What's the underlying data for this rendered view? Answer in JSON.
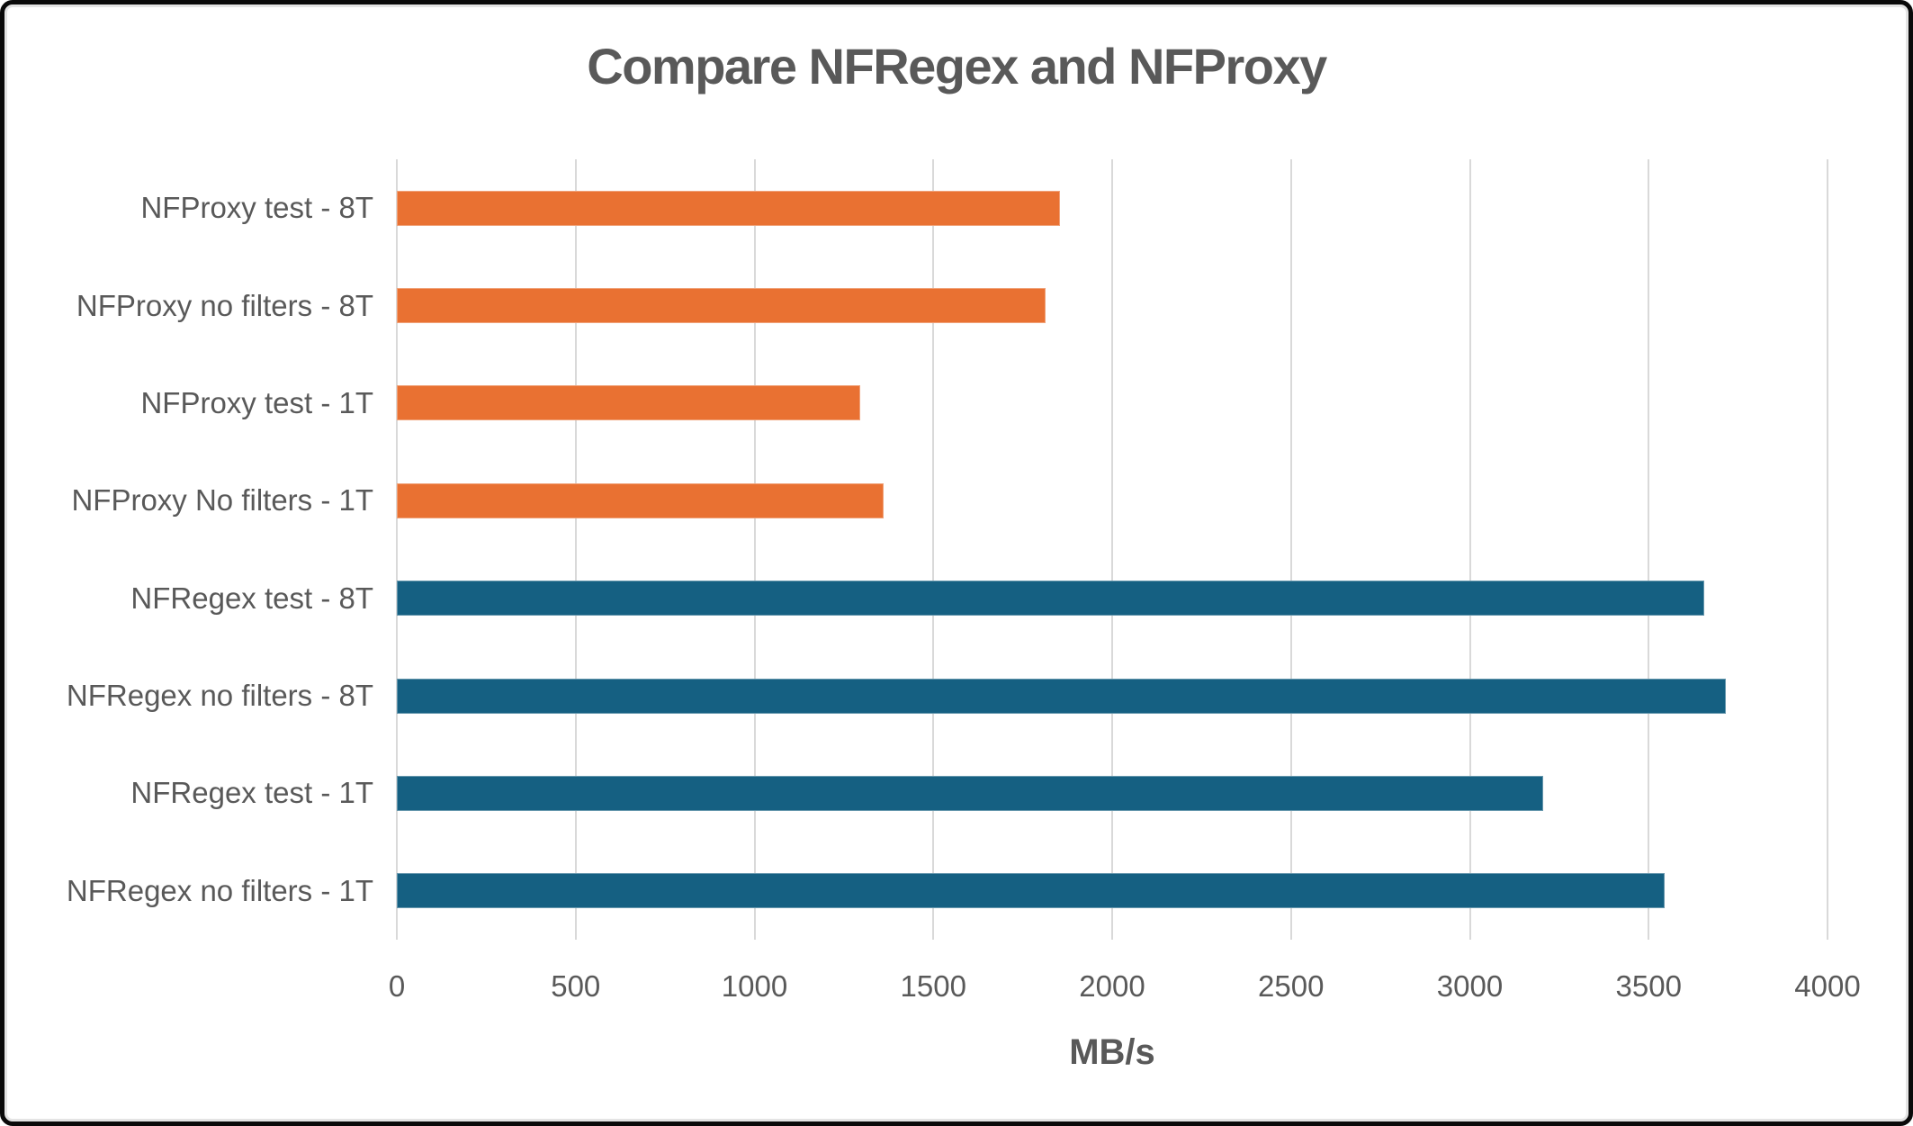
{
  "chart": {
    "title": "Compare NFRegex and NFProxy",
    "xlabel": "MB/s"
  },
  "colors": {
    "nfproxy_orange": "#E97132",
    "nfregex_blue": "#156082",
    "gridline": "#D9D9D9",
    "text": "#595959",
    "frame_border": "#0A0A0A"
  },
  "chart_data": {
    "type": "bar",
    "orientation": "horizontal",
    "title": "Compare NFRegex and NFProxy",
    "xlabel": "MB/s",
    "xlim": [
      0,
      4000
    ],
    "xticks": [
      0,
      500,
      1000,
      1500,
      2000,
      2500,
      3000,
      3500,
      4000
    ],
    "grid": true,
    "legend": "none",
    "bars_top_to_bottom": [
      {
        "label": "NFProxy test - 8T",
        "value": 1855,
        "series": "NFProxy",
        "color": "#E97132"
      },
      {
        "label": "NFProxy no filters - 8T",
        "value": 1815,
        "series": "NFProxy",
        "color": "#E97132"
      },
      {
        "label": "NFProxy test - 1T",
        "value": 1295,
        "series": "NFProxy",
        "color": "#E97132"
      },
      {
        "label": "NFProxy No filters  - 1T",
        "value": 1360,
        "series": "NFProxy",
        "color": "#E97132"
      },
      {
        "label": "NFRegex test - 8T",
        "value": 3655,
        "series": "NFRegex",
        "color": "#156082"
      },
      {
        "label": "NFRegex no filters - 8T",
        "value": 3715,
        "series": "NFRegex",
        "color": "#156082"
      },
      {
        "label": "NFRegex test - 1T",
        "value": 3205,
        "series": "NFRegex",
        "color": "#156082"
      },
      {
        "label": "NFRegex no filters - 1T",
        "value": 3545,
        "series": "NFRegex",
        "color": "#156082"
      }
    ]
  }
}
